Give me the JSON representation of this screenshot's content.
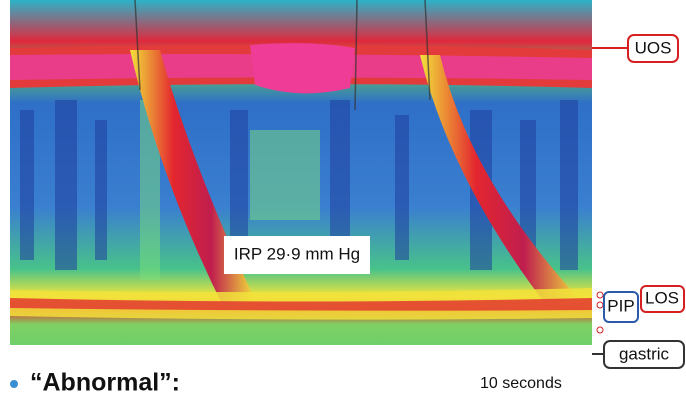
{
  "figure": {
    "annotation": "IRP 29·9 mm Hg",
    "labels": {
      "uos": "UOS",
      "pip": "PIP",
      "los": "LOS",
      "gastric": "gastric"
    },
    "time_scale": "10 seconds"
  },
  "bullet": "“Abnormal”:"
}
